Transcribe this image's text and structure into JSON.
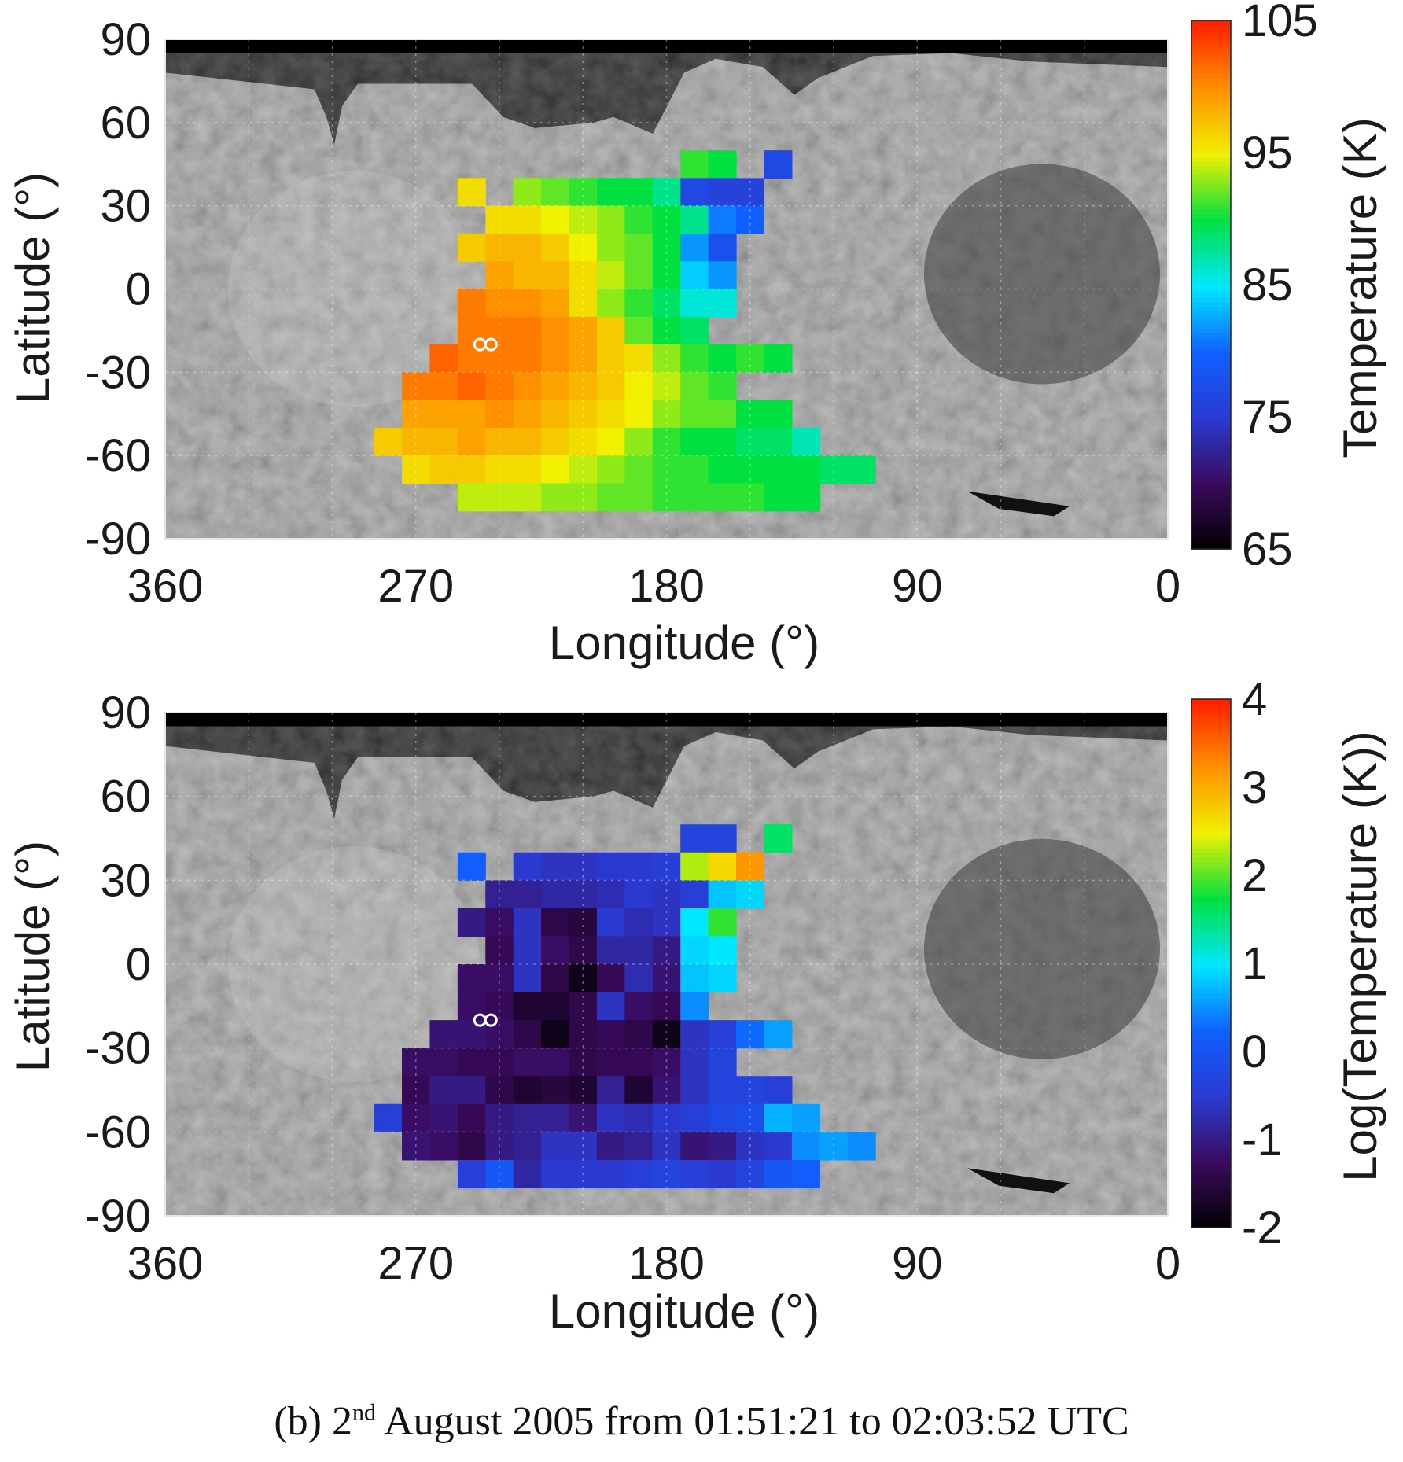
{
  "caption": {
    "prefix": "(b) 2",
    "superscript": "nd",
    "suffix": " August 2005 from 01:51:21 to 02:03:52 UTC"
  },
  "colors": {
    "jet": [
      "#000000",
      "#3a0a5c",
      "#2a3ad0",
      "#1060ff",
      "#00e8ff",
      "#00e040",
      "#f0f000",
      "#ff9000",
      "#ff2000"
    ],
    "background_sky": "#000000",
    "surface_gray": "#9a9a9a",
    "marker": "#ffffff"
  },
  "marker_icon": "infinity-marker-icon",
  "chart_data": [
    {
      "type": "heatmap",
      "xlabel": "Longitude (°)",
      "ylabel": "Latitude (°)",
      "xlim": [
        360,
        0
      ],
      "ylim": [
        -90,
        90
      ],
      "xticks": [
        "360",
        "270",
        "180",
        "90",
        "0"
      ],
      "xtick_values": [
        360,
        270,
        180,
        90,
        0
      ],
      "yticks": [
        "90",
        "60",
        "30",
        "0",
        "-30",
        "-60",
        "-90"
      ],
      "ytick_values": [
        90,
        60,
        30,
        0,
        -30,
        -60,
        -90
      ],
      "grid": true,
      "colorbar": {
        "label": "Temperature (K)",
        "range": [
          65,
          105
        ],
        "ticks": [
          "105",
          "95",
          "85",
          "75",
          "65"
        ],
        "tick_values": [
          105,
          95,
          85,
          75,
          65
        ]
      },
      "cell_size_deg": 10,
      "marker": {
        "lon": 245,
        "lat": -20
      },
      "rows": [
        {
          "lat": 45,
          "lon_start": 170,
          "values": [
            91,
            90
          ]
        },
        {
          "lat": 45,
          "lon_start": 140,
          "values": [
            77
          ]
        },
        {
          "lat": 35,
          "lon_start": 250,
          "values": [
            96
          ]
        },
        {
          "lat": 35,
          "lon_start": 230,
          "values": [
            93,
            92,
            91,
            90,
            90,
            88,
            77,
            76,
            76
          ]
        },
        {
          "lat": 25,
          "lon_start": 240,
          "values": [
            96,
            96,
            95,
            94,
            93,
            91,
            90,
            88,
            81,
            80
          ]
        },
        {
          "lat": 15,
          "lon_start": 250,
          "values": [
            97,
            98,
            98,
            97,
            95,
            93,
            92,
            90,
            82,
            78
          ]
        },
        {
          "lat": 5,
          "lon_start": 240,
          "values": [
            99,
            98,
            98,
            96,
            94,
            92,
            90,
            84,
            82
          ]
        },
        {
          "lat": -5,
          "lon_start": 250,
          "values": [
            101,
            100,
            100,
            99,
            96,
            93,
            91,
            89,
            86,
            86
          ]
        },
        {
          "lat": -15,
          "lon_start": 250,
          "values": [
            101,
            101,
            101,
            100,
            99,
            97,
            92,
            90,
            89
          ]
        },
        {
          "lat": -25,
          "lon_start": 260,
          "values": [
            102,
            101,
            101,
            101,
            100,
            99,
            97,
            96,
            93,
            91,
            90,
            91,
            90
          ]
        },
        {
          "lat": -35,
          "lon_start": 270,
          "values": [
            101,
            101,
            102,
            101,
            100,
            99,
            98,
            97,
            95,
            94,
            92,
            91
          ]
        },
        {
          "lat": -45,
          "lon_start": 270,
          "values": [
            99,
            99,
            99,
            100,
            99,
            98,
            97,
            96,
            95,
            93,
            92,
            92,
            90,
            90
          ]
        },
        {
          "lat": -55,
          "lon_start": 280,
          "values": [
            97,
            98,
            98,
            99,
            98,
            98,
            97,
            96,
            95,
            93,
            91,
            90,
            90,
            89,
            89,
            87
          ]
        },
        {
          "lat": -65,
          "lon_start": 270,
          "values": [
            96,
            97,
            97,
            96,
            96,
            95,
            94,
            93,
            92,
            91,
            91,
            90,
            90,
            90,
            90,
            89,
            89
          ]
        },
        {
          "lat": -75,
          "lon_start": 250,
          "values": [
            94,
            94,
            94,
            93,
            93,
            92,
            92,
            91,
            91,
            91,
            91,
            90,
            90
          ]
        }
      ]
    },
    {
      "type": "heatmap",
      "xlabel": "Longitude (°)",
      "ylabel": "Latitude (°)",
      "xlim": [
        360,
        0
      ],
      "ylim": [
        -90,
        90
      ],
      "xticks": [
        "360",
        "270",
        "180",
        "90",
        "0"
      ],
      "xtick_values": [
        360,
        270,
        180,
        90,
        0
      ],
      "yticks": [
        "90",
        "60",
        "30",
        "0",
        "-30",
        "-60",
        "-90"
      ],
      "ytick_values": [
        90,
        60,
        30,
        0,
        -30,
        -60,
        -90
      ],
      "grid": true,
      "colorbar": {
        "label": "Log(Temperature (K))",
        "range": [
          -2,
          4
        ],
        "ticks": [
          "4",
          "3",
          "2",
          "1",
          "0",
          "-1",
          "-2"
        ],
        "tick_values": [
          4,
          3,
          2,
          1,
          0,
          -1,
          -2
        ]
      },
      "cell_size_deg": 10,
      "marker": {
        "lon": 245,
        "lat": -20
      },
      "rows": [
        {
          "lat": 45,
          "lon_start": 170,
          "values": [
            -0.3,
            -0.3
          ]
        },
        {
          "lat": 45,
          "lon_start": 140,
          "values": [
            1.6
          ]
        },
        {
          "lat": 35,
          "lon_start": 250,
          "values": [
            0.2
          ]
        },
        {
          "lat": 35,
          "lon_start": 230,
          "values": [
            -0.5,
            -0.6,
            -0.6,
            -0.5,
            -0.5,
            -0.4,
            2.3,
            2.7,
            3.2
          ]
        },
        {
          "lat": 25,
          "lon_start": 240,
          "values": [
            -0.9,
            -0.9,
            -0.8,
            -0.8,
            -0.7,
            -0.5,
            -0.6,
            -0.4,
            0.8,
            0.9
          ]
        },
        {
          "lat": 15,
          "lon_start": 250,
          "values": [
            -1.0,
            -1.2,
            -0.6,
            -1.4,
            -1.5,
            -0.5,
            -0.7,
            -0.6,
            1.0,
            1.9
          ]
        },
        {
          "lat": 5,
          "lon_start": 240,
          "values": [
            -1.3,
            -0.6,
            -1.2,
            -1.4,
            -0.8,
            -0.8,
            -1.0,
            0.9,
            1.0
          ]
        },
        {
          "lat": -5,
          "lon_start": 250,
          "values": [
            -1.2,
            -1.2,
            -0.6,
            -1.4,
            -1.8,
            -1.3,
            -0.7,
            -1.1,
            0.8,
            0.9
          ]
        },
        {
          "lat": -15,
          "lon_start": 250,
          "values": [
            -1.2,
            -1.3,
            -1.6,
            -1.6,
            -1.4,
            -0.6,
            -1.2,
            -1.3,
            0.5
          ]
        },
        {
          "lat": -25,
          "lon_start": 260,
          "values": [
            -1.1,
            -1.1,
            -1.2,
            -1.4,
            -1.8,
            -1.4,
            -1.3,
            -1.4,
            -1.8,
            -0.6,
            -0.4,
            0.3,
            0.6
          ]
        },
        {
          "lat": -35,
          "lon_start": 270,
          "values": [
            -1.2,
            -1.2,
            -1.3,
            -1.3,
            -1.2,
            -1.2,
            -1.4,
            -1.3,
            -1.3,
            -1.2,
            -0.6,
            -0.3
          ]
        },
        {
          "lat": -45,
          "lon_start": 270,
          "values": [
            -1.3,
            -1.0,
            -1.0,
            -1.4,
            -1.6,
            -1.5,
            -1.6,
            -0.9,
            -1.6,
            -1.1,
            -0.6,
            -0.3,
            -0.3,
            -0.4
          ]
        },
        {
          "lat": -55,
          "lon_start": 280,
          "values": [
            -0.4,
            -1.2,
            -1.1,
            -1.3,
            -1.0,
            -0.9,
            -0.9,
            -1.1,
            -0.6,
            -0.7,
            -0.5,
            -0.4,
            -0.2,
            -0.1,
            0.7,
            0.6
          ]
        },
        {
          "lat": -65,
          "lon_start": 270,
          "values": [
            -1.1,
            -1.2,
            -1.4,
            -1.0,
            -0.9,
            -0.6,
            -0.6,
            -1.0,
            -0.9,
            -0.6,
            -1.1,
            -1.0,
            -0.6,
            -0.5,
            0.5,
            0.6,
            0.5
          ]
        },
        {
          "lat": -75,
          "lon_start": 250,
          "values": [
            -0.4,
            0.1,
            -0.8,
            -0.5,
            -0.5,
            -0.5,
            -0.4,
            -0.3,
            -0.4,
            -0.5,
            -0.3,
            0.1,
            0.2
          ]
        }
      ]
    }
  ]
}
